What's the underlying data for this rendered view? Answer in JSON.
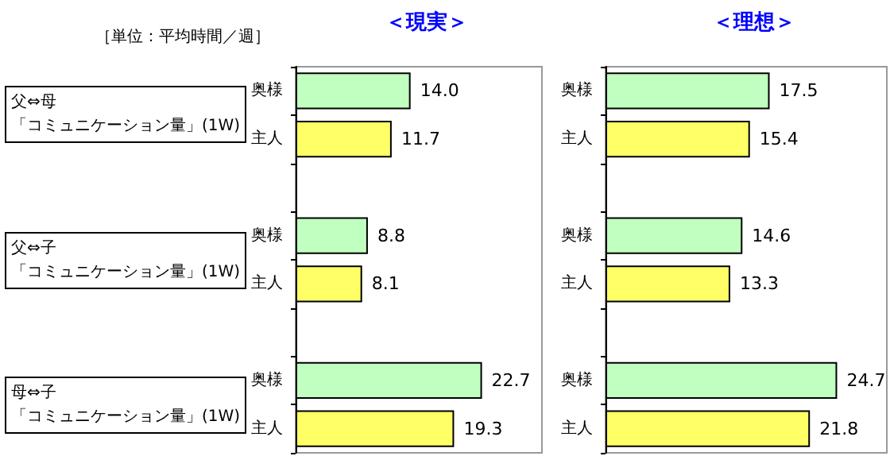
{
  "chart_data": [
    {
      "type": "bar",
      "orientation": "horizontal",
      "title": "＜現実＞",
      "categories": [
        "奥様",
        "主人",
        null,
        "奥様",
        "主人",
        null,
        "奥様",
        "主人"
      ],
      "values": [
        14.0,
        11.7,
        null,
        8.8,
        8.1,
        null,
        22.7,
        19.3
      ],
      "value_labels": [
        "14.0",
        "11.7",
        null,
        "8.8",
        "8.1",
        null,
        "22.7",
        "19.3"
      ],
      "colors": [
        "#c0ffc0",
        "#ffff66",
        null,
        "#c0ffc0",
        "#ffff66",
        null,
        "#c0ffc0",
        "#ffff66"
      ],
      "xlim": [
        0,
        30
      ],
      "tick_labels": "y",
      "grid": false,
      "annotations": [
        "［単位：平均時間／週］",
        "父⇔母",
        "「コミュニケーション量」(1W)",
        "父⇔子",
        "「コミュニケーション量」(1W)",
        "母⇔子",
        "「コミュニケーション量」(1W)"
      ]
    },
    {
      "type": "bar",
      "orientation": "horizontal",
      "title": "＜理想＞",
      "categories": [
        "奥様",
        "主人",
        null,
        "奥様",
        "主人",
        null,
        "奥様",
        "主人"
      ],
      "values": [
        17.5,
        15.4,
        null,
        14.6,
        13.3,
        null,
        24.7,
        21.8
      ],
      "value_labels": [
        "17.5",
        "15.4",
        null,
        "14.6",
        "13.3",
        null,
        "24.7",
        "21.8"
      ],
      "colors": [
        "#c0ffc0",
        "#ffff66",
        null,
        "#c0ffc0",
        "#ffff66",
        null,
        "#c0ffc0",
        "#ffff66"
      ],
      "xlim": [
        0,
        30
      ],
      "tick_labels": "y",
      "grid": false
    }
  ]
}
